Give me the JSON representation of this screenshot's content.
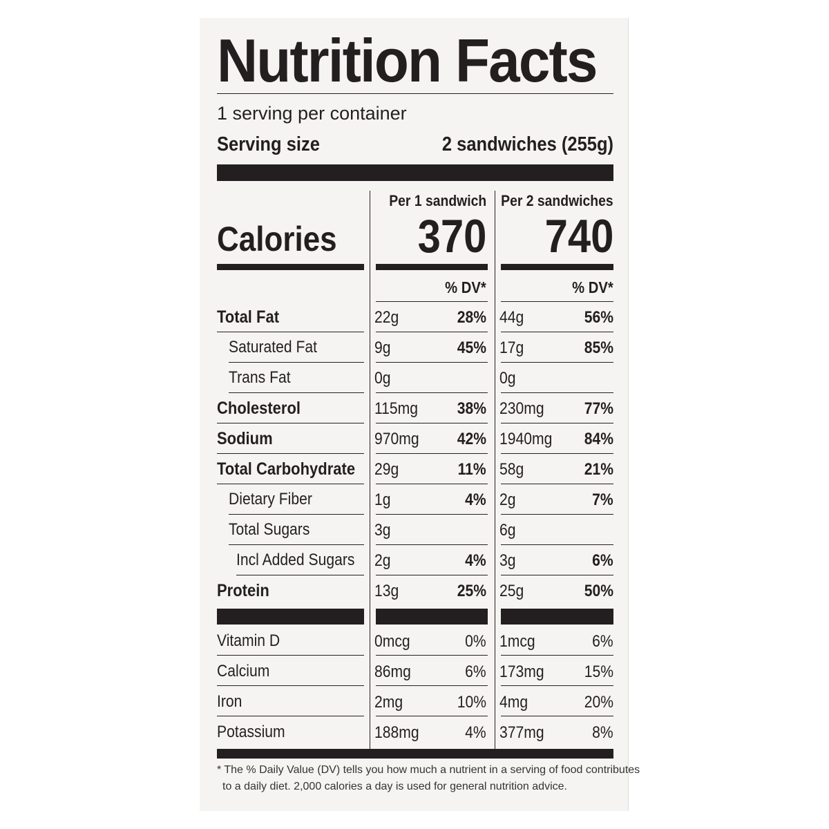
{
  "title": "Nutrition Facts",
  "servings_per_container": "1 serving per container",
  "serving_size_label": "Serving size",
  "serving_size_value": "2 sandwiches (255g)",
  "columns": [
    {
      "header": "Per 1 sandwich",
      "calories": "370",
      "dv_header": "% DV*"
    },
    {
      "header": "Per 2 sandwiches",
      "calories": "740",
      "dv_header": "% DV*"
    }
  ],
  "calories_label": "Calories",
  "nutrients": [
    {
      "name": "Total Fat",
      "bold": true,
      "indent": 0,
      "c1_amt": "22g",
      "c1_dv": "28%",
      "c2_amt": "44g",
      "c2_dv": "56%"
    },
    {
      "name": "Saturated Fat",
      "bold": false,
      "indent": 1,
      "c1_amt": "9g",
      "c1_dv": "45%",
      "c2_amt": "17g",
      "c2_dv": "85%"
    },
    {
      "name": "Trans Fat",
      "bold": false,
      "indent": 1,
      "c1_amt": "0g",
      "c1_dv": "",
      "c2_amt": "0g",
      "c2_dv": ""
    },
    {
      "name": "Cholesterol",
      "bold": true,
      "indent": 0,
      "c1_amt": "115mg",
      "c1_dv": "38%",
      "c2_amt": "230mg",
      "c2_dv": "77%"
    },
    {
      "name": "Sodium",
      "bold": true,
      "indent": 0,
      "c1_amt": "970mg",
      "c1_dv": "42%",
      "c2_amt": "1940mg",
      "c2_dv": "84%"
    },
    {
      "name": "Total Carbohydrate",
      "bold": true,
      "indent": 0,
      "c1_amt": "29g",
      "c1_dv": "11%",
      "c2_amt": "58g",
      "c2_dv": "21%"
    },
    {
      "name": "Dietary Fiber",
      "bold": false,
      "indent": 1,
      "c1_amt": "1g",
      "c1_dv": "4%",
      "c2_amt": "2g",
      "c2_dv": "7%"
    },
    {
      "name": "Total Sugars",
      "bold": false,
      "indent": 1,
      "c1_amt": "3g",
      "c1_dv": "",
      "c2_amt": "6g",
      "c2_dv": ""
    },
    {
      "name": "Incl Added Sugars",
      "bold": false,
      "indent": 2,
      "c1_amt": "2g",
      "c1_dv": "4%",
      "c2_amt": "3g",
      "c2_dv": "6%"
    },
    {
      "name": "Protein",
      "bold": true,
      "indent": 0,
      "c1_amt": "13g",
      "c1_dv": "25%",
      "c2_amt": "25g",
      "c2_dv": "50%"
    }
  ],
  "vitamins": [
    {
      "name": "Vitamin D",
      "c1_amt": "0mcg",
      "c1_dv": "0%",
      "c2_amt": "1mcg",
      "c2_dv": "6%"
    },
    {
      "name": "Calcium",
      "c1_amt": "86mg",
      "c1_dv": "6%",
      "c2_amt": "173mg",
      "c2_dv": "15%"
    },
    {
      "name": "Iron",
      "c1_amt": "2mg",
      "c1_dv": "10%",
      "c2_amt": "4mg",
      "c2_dv": "20%"
    },
    {
      "name": "Potassium",
      "c1_amt": "188mg",
      "c1_dv": "4%",
      "c2_amt": "377mg",
      "c2_dv": "8%"
    }
  ],
  "footnote_line1": "* The % Daily Value (DV) tells you how much a nutrient in a serving of food contributes",
  "footnote_line2": "to a daily diet. 2,000 calories a day is used for general nutrition advice."
}
